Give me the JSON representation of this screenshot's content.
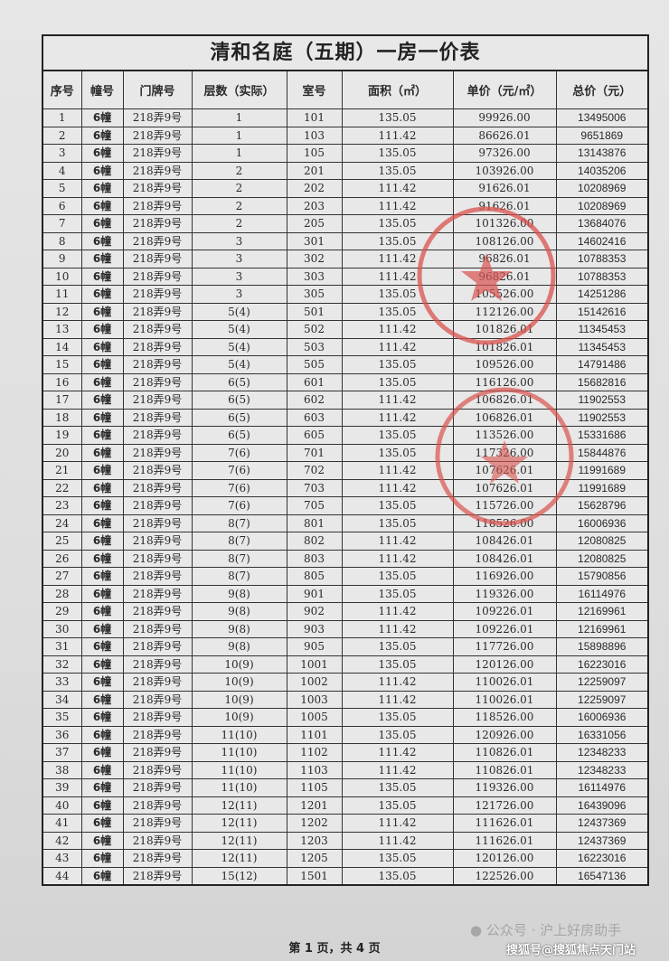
{
  "title": "清和名庭（五期）一房一价表",
  "columns": [
    "序号",
    "幢号",
    "门牌号",
    "层数（实际）",
    "室号",
    "面积（㎡）",
    "单价（元/㎡）",
    "总价（元）"
  ],
  "rows": [
    [
      "1",
      "6幢",
      "218弄9号",
      "1",
      "101",
      "135.05",
      "99926.00",
      "13495006"
    ],
    [
      "2",
      "6幢",
      "218弄9号",
      "1",
      "103",
      "111.42",
      "86626.01",
      "9651869"
    ],
    [
      "3",
      "6幢",
      "218弄9号",
      "1",
      "105",
      "135.05",
      "97326.00",
      "13143876"
    ],
    [
      "4",
      "6幢",
      "218弄9号",
      "2",
      "201",
      "135.05",
      "103926.00",
      "14035206"
    ],
    [
      "5",
      "6幢",
      "218弄9号",
      "2",
      "202",
      "111.42",
      "91626.01",
      "10208969"
    ],
    [
      "6",
      "6幢",
      "218弄9号",
      "2",
      "203",
      "111.42",
      "91626.01",
      "10208969"
    ],
    [
      "7",
      "6幢",
      "218弄9号",
      "2",
      "205",
      "135.05",
      "101326.00",
      "13684076"
    ],
    [
      "8",
      "6幢",
      "218弄9号",
      "3",
      "301",
      "135.05",
      "108126.00",
      "14602416"
    ],
    [
      "9",
      "6幢",
      "218弄9号",
      "3",
      "302",
      "111.42",
      "96826.01",
      "10788353"
    ],
    [
      "10",
      "6幢",
      "218弄9号",
      "3",
      "303",
      "111.42",
      "96826.01",
      "10788353"
    ],
    [
      "11",
      "6幢",
      "218弄9号",
      "3",
      "305",
      "135.05",
      "105526.00",
      "14251286"
    ],
    [
      "12",
      "6幢",
      "218弄9号",
      "5(4)",
      "501",
      "135.05",
      "112126.00",
      "15142616"
    ],
    [
      "13",
      "6幢",
      "218弄9号",
      "5(4)",
      "502",
      "111.42",
      "101826.01",
      "11345453"
    ],
    [
      "14",
      "6幢",
      "218弄9号",
      "5(4)",
      "503",
      "111.42",
      "101826.01",
      "11345453"
    ],
    [
      "15",
      "6幢",
      "218弄9号",
      "5(4)",
      "505",
      "135.05",
      "109526.00",
      "14791486"
    ],
    [
      "16",
      "6幢",
      "218弄9号",
      "6(5)",
      "601",
      "135.05",
      "116126.00",
      "15682816"
    ],
    [
      "17",
      "6幢",
      "218弄9号",
      "6(5)",
      "602",
      "111.42",
      "106826.01",
      "11902553"
    ],
    [
      "18",
      "6幢",
      "218弄9号",
      "6(5)",
      "603",
      "111.42",
      "106826.01",
      "11902553"
    ],
    [
      "19",
      "6幢",
      "218弄9号",
      "6(5)",
      "605",
      "135.05",
      "113526.00",
      "15331686"
    ],
    [
      "20",
      "6幢",
      "218弄9号",
      "7(6)",
      "701",
      "135.05",
      "117326.00",
      "15844876"
    ],
    [
      "21",
      "6幢",
      "218弄9号",
      "7(6)",
      "702",
      "111.42",
      "107626.01",
      "11991689"
    ],
    [
      "22",
      "6幢",
      "218弄9号",
      "7(6)",
      "703",
      "111.42",
      "107626.01",
      "11991689"
    ],
    [
      "23",
      "6幢",
      "218弄9号",
      "7(6)",
      "705",
      "135.05",
      "115726.00",
      "15628796"
    ],
    [
      "24",
      "6幢",
      "218弄9号",
      "8(7)",
      "801",
      "135.05",
      "118526.00",
      "16006936"
    ],
    [
      "25",
      "6幢",
      "218弄9号",
      "8(7)",
      "802",
      "111.42",
      "108426.01",
      "12080825"
    ],
    [
      "26",
      "6幢",
      "218弄9号",
      "8(7)",
      "803",
      "111.42",
      "108426.01",
      "12080825"
    ],
    [
      "27",
      "6幢",
      "218弄9号",
      "8(7)",
      "805",
      "135.05",
      "116926.00",
      "15790856"
    ],
    [
      "28",
      "6幢",
      "218弄9号",
      "9(8)",
      "901",
      "135.05",
      "119326.00",
      "16114976"
    ],
    [
      "29",
      "6幢",
      "218弄9号",
      "9(8)",
      "902",
      "111.42",
      "109226.01",
      "12169961"
    ],
    [
      "30",
      "6幢",
      "218弄9号",
      "9(8)",
      "903",
      "111.42",
      "109226.01",
      "12169961"
    ],
    [
      "31",
      "6幢",
      "218弄9号",
      "9(8)",
      "905",
      "135.05",
      "117726.00",
      "15898896"
    ],
    [
      "32",
      "6幢",
      "218弄9号",
      "10(9)",
      "1001",
      "135.05",
      "120126.00",
      "16223016"
    ],
    [
      "33",
      "6幢",
      "218弄9号",
      "10(9)",
      "1002",
      "111.42",
      "110026.01",
      "12259097"
    ],
    [
      "34",
      "6幢",
      "218弄9号",
      "10(9)",
      "1003",
      "111.42",
      "110026.01",
      "12259097"
    ],
    [
      "35",
      "6幢",
      "218弄9号",
      "10(9)",
      "1005",
      "135.05",
      "118526.00",
      "16006936"
    ],
    [
      "36",
      "6幢",
      "218弄9号",
      "11(10)",
      "1101",
      "135.05",
      "120926.00",
      "16331056"
    ],
    [
      "37",
      "6幢",
      "218弄9号",
      "11(10)",
      "1102",
      "111.42",
      "110826.01",
      "12348233"
    ],
    [
      "38",
      "6幢",
      "218弄9号",
      "11(10)",
      "1103",
      "111.42",
      "110826.01",
      "12348233"
    ],
    [
      "39",
      "6幢",
      "218弄9号",
      "11(10)",
      "1105",
      "135.05",
      "119326.00",
      "16114976"
    ],
    [
      "40",
      "6幢",
      "218弄9号",
      "12(11)",
      "1201",
      "135.05",
      "121726.00",
      "16439096"
    ],
    [
      "41",
      "6幢",
      "218弄9号",
      "12(11)",
      "1202",
      "111.42",
      "111626.01",
      "12437369"
    ],
    [
      "42",
      "6幢",
      "218弄9号",
      "12(11)",
      "1203",
      "111.42",
      "111626.01",
      "12437369"
    ],
    [
      "43",
      "6幢",
      "218弄9号",
      "12(11)",
      "1205",
      "135.05",
      "120126.00",
      "16223016"
    ],
    [
      "44",
      "6幢",
      "218弄9号",
      "15(12)",
      "1501",
      "135.05",
      "122526.00",
      "16547136"
    ]
  ],
  "footer": "第 1 页，共 4 页",
  "watermarks": {
    "wechat": "公众号 · 沪上好房助手",
    "sohu": "搜狐号@搜狐焦点天门站"
  },
  "colors": {
    "stamp": "#d9534f",
    "ink": "#2a2a2a"
  }
}
